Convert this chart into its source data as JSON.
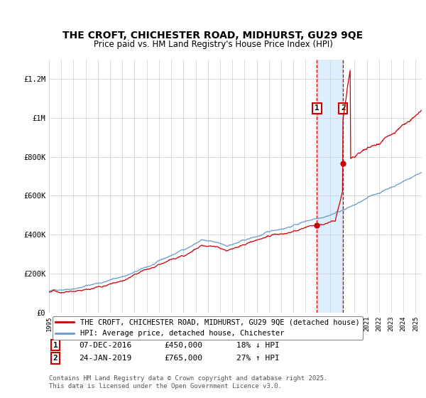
{
  "title_line1": "THE CROFT, CHICHESTER ROAD, MIDHURST, GU29 9QE",
  "title_line2": "Price paid vs. HM Land Registry's House Price Index (HPI)",
  "ylabel_ticks": [
    "£0",
    "£200K",
    "£400K",
    "£600K",
    "£800K",
    "£1M",
    "£1.2M"
  ],
  "ytick_values": [
    0,
    200000,
    400000,
    600000,
    800000,
    1000000,
    1200000
  ],
  "ylim": [
    0,
    1300000
  ],
  "xlim_start": 1995.0,
  "xlim_end": 2025.5,
  "transaction1_x": 2016.93,
  "transaction1_y": 450000,
  "transaction1_label": "1",
  "transaction1_date": "07-DEC-2016",
  "transaction1_price": "£450,000",
  "transaction1_hpi": "18% ↓ HPI",
  "transaction2_x": 2019.07,
  "transaction2_y": 765000,
  "transaction2_label": "2",
  "transaction2_date": "24-JAN-2019",
  "transaction2_price": "£765,000",
  "transaction2_hpi": "27% ↑ HPI",
  "red_color": "#cc0000",
  "blue_color": "#6699cc",
  "shade_color": "#ddeeff",
  "grid_color": "#cccccc",
  "legend_label_red": "THE CROFT, CHICHESTER ROAD, MIDHURST, GU29 9QE (detached house)",
  "legend_label_blue": "HPI: Average price, detached house, Chichester",
  "footer_text": "Contains HM Land Registry data © Crown copyright and database right 2025.\nThis data is licensed under the Open Government Licence v3.0.",
  "xtick_years": [
    1995,
    1996,
    1997,
    1998,
    1999,
    2000,
    2001,
    2002,
    2003,
    2004,
    2005,
    2006,
    2007,
    2008,
    2009,
    2010,
    2011,
    2012,
    2013,
    2014,
    2015,
    2016,
    2017,
    2018,
    2019,
    2020,
    2021,
    2022,
    2023,
    2024,
    2025
  ]
}
